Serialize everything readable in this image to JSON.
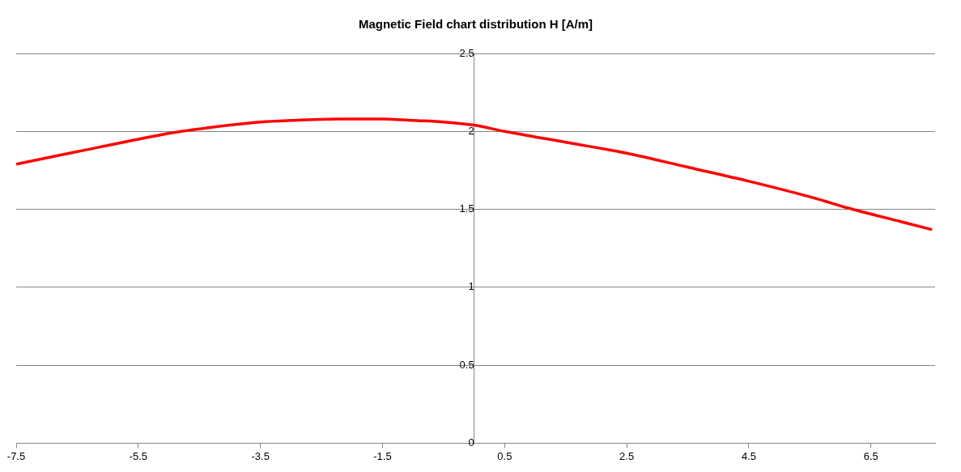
{
  "chart_data": {
    "type": "line",
    "title": "Magnetic Field chart distribution H [A/m]",
    "series": [
      {
        "color": "#ff0000",
        "x": [
          -7.5,
          -6.5,
          -5.5,
          -4.8,
          -4,
          -3.5,
          -3,
          -2.2,
          -1.5,
          -1,
          -0.5,
          0,
          0.5,
          1.5,
          2.5,
          3.5,
          4.5,
          5.5,
          6.2,
          7,
          7.5
        ],
        "values": [
          1.79,
          1.87,
          1.95,
          2.0,
          2.04,
          2.06,
          2.07,
          2.08,
          2.08,
          2.07,
          2.06,
          2.04,
          2.0,
          1.93,
          1.86,
          1.77,
          1.68,
          1.58,
          1.5,
          1.42,
          1.37
        ]
      }
    ],
    "xlim": [
      -7.5,
      7.55
    ],
    "xticks": [
      -7.5,
      -5.5,
      -3.5,
      -1.5,
      0.5,
      2.5,
      4.5,
      6.5
    ],
    "ylim": [
      0,
      2.5
    ],
    "yticks": [
      0,
      {
        "value": 0.5,
        "label": "0.5"
      },
      1,
      {
        "value": 1.5,
        "label": "1.5"
      },
      2,
      {
        "value": 2.5,
        "label": "2.5"
      }
    ],
    "grid": "y",
    "legend": false,
    "marker": "none",
    "line_style": "solid"
  }
}
